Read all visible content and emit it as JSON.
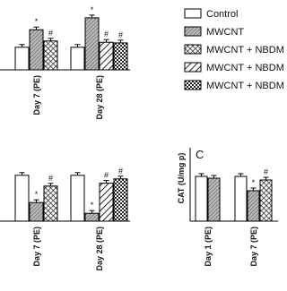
{
  "chart_data": [
    {
      "type": "bar",
      "categories": [
        "Day 7 (PE)",
        "Day 28 (PE)"
      ],
      "ylim": [
        0,
        100
      ],
      "series": [
        {
          "name": "Control",
          "pattern": "none",
          "values": [
            36,
            36
          ],
          "annotations": [
            null,
            null
          ]
        },
        {
          "name": "MWCNT",
          "pattern": "diagonal",
          "values": [
            64,
            83
          ],
          "annotations": [
            "*",
            "*"
          ]
        },
        {
          "name": "MWCNT + NBDM",
          "pattern": "crosshatch",
          "values": [
            46,
            null
          ],
          "annotations": [
            "#",
            null
          ]
        },
        {
          "name": "MWCNT + NBDM",
          "pattern": "stripes",
          "values": [
            null,
            44
          ],
          "annotations": [
            null,
            "#"
          ]
        },
        {
          "name": "MWCNT + NBDM",
          "pattern": "dots",
          "values": [
            null,
            43
          ],
          "annotations": [
            null,
            "#"
          ]
        }
      ]
    },
    {
      "type": "bar",
      "categories": [
        "Day 7 (PE)",
        "Day 28 (PE)"
      ],
      "ylim": [
        0,
        100
      ],
      "series": [
        {
          "pattern": "none",
          "values": [
            64,
            64
          ],
          "annotations": [
            null,
            null
          ]
        },
        {
          "pattern": "diagonal",
          "values": [
            26,
            11
          ],
          "annotations": [
            "*",
            "*"
          ]
        },
        {
          "pattern": "crosshatch",
          "values": [
            49,
            null
          ],
          "annotations": [
            "#",
            null
          ]
        },
        {
          "pattern": "stripes",
          "values": [
            null,
            53
          ],
          "annotations": [
            null,
            "#"
          ]
        },
        {
          "pattern": "dots",
          "values": [
            null,
            59
          ],
          "annotations": [
            null,
            "#"
          ]
        }
      ]
    },
    {
      "type": "bar",
      "title": "C",
      "y_label": "CAT (U/mg p)",
      "categories": [
        "Day 1 (PE)",
        "Day 7 (PE)"
      ],
      "ylim": [
        0,
        100
      ],
      "series": [
        {
          "pattern": "none",
          "values": [
            62.5,
            62.5
          ],
          "annotations": [
            null,
            null
          ]
        },
        {
          "pattern": "diagonal",
          "values": [
            60,
            42.5
          ],
          "annotations": [
            null,
            "*"
          ]
        },
        {
          "pattern": "crosshatch",
          "values": [
            null,
            57.5
          ],
          "annotations": [
            null,
            "#"
          ]
        }
      ]
    }
  ]
}
